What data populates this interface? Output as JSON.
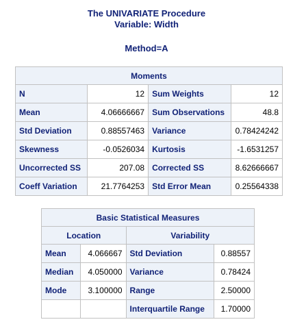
{
  "header": {
    "procedure_title": "The UNIVARIATE Procedure",
    "variable_title": "Variable: Width",
    "method_title": "Method=A"
  },
  "moments": {
    "caption": "Moments",
    "rows": [
      [
        "N",
        "12",
        "Sum Weights",
        "12"
      ],
      [
        "Mean",
        "4.06666667",
        "Sum Observations",
        "48.8"
      ],
      [
        "Std Deviation",
        "0.88557463",
        "Variance",
        "0.78424242"
      ],
      [
        "Skewness",
        "-0.0526034",
        "Kurtosis",
        "-1.6531257"
      ],
      [
        "Uncorrected SS",
        "207.08",
        "Corrected SS",
        "8.62666667"
      ],
      [
        "Coeff Variation",
        "21.7764253",
        "Std Error Mean",
        "0.25564338"
      ]
    ]
  },
  "basic_measures": {
    "caption": "Basic Statistical Measures",
    "location_header": "Location",
    "variability_header": "Variability",
    "rows": [
      [
        "Mean",
        "4.066667",
        "Std Deviation",
        "0.88557"
      ],
      [
        "Median",
        "4.050000",
        "Variance",
        "0.78424"
      ],
      [
        "Mode",
        "3.100000",
        "Range",
        "2.50000"
      ],
      [
        "",
        "",
        "Interquartile Range",
        "1.70000"
      ]
    ]
  },
  "colors": {
    "title_text": "#112277",
    "header_bg": "#edf2f9",
    "border": "#c1c1c1"
  }
}
